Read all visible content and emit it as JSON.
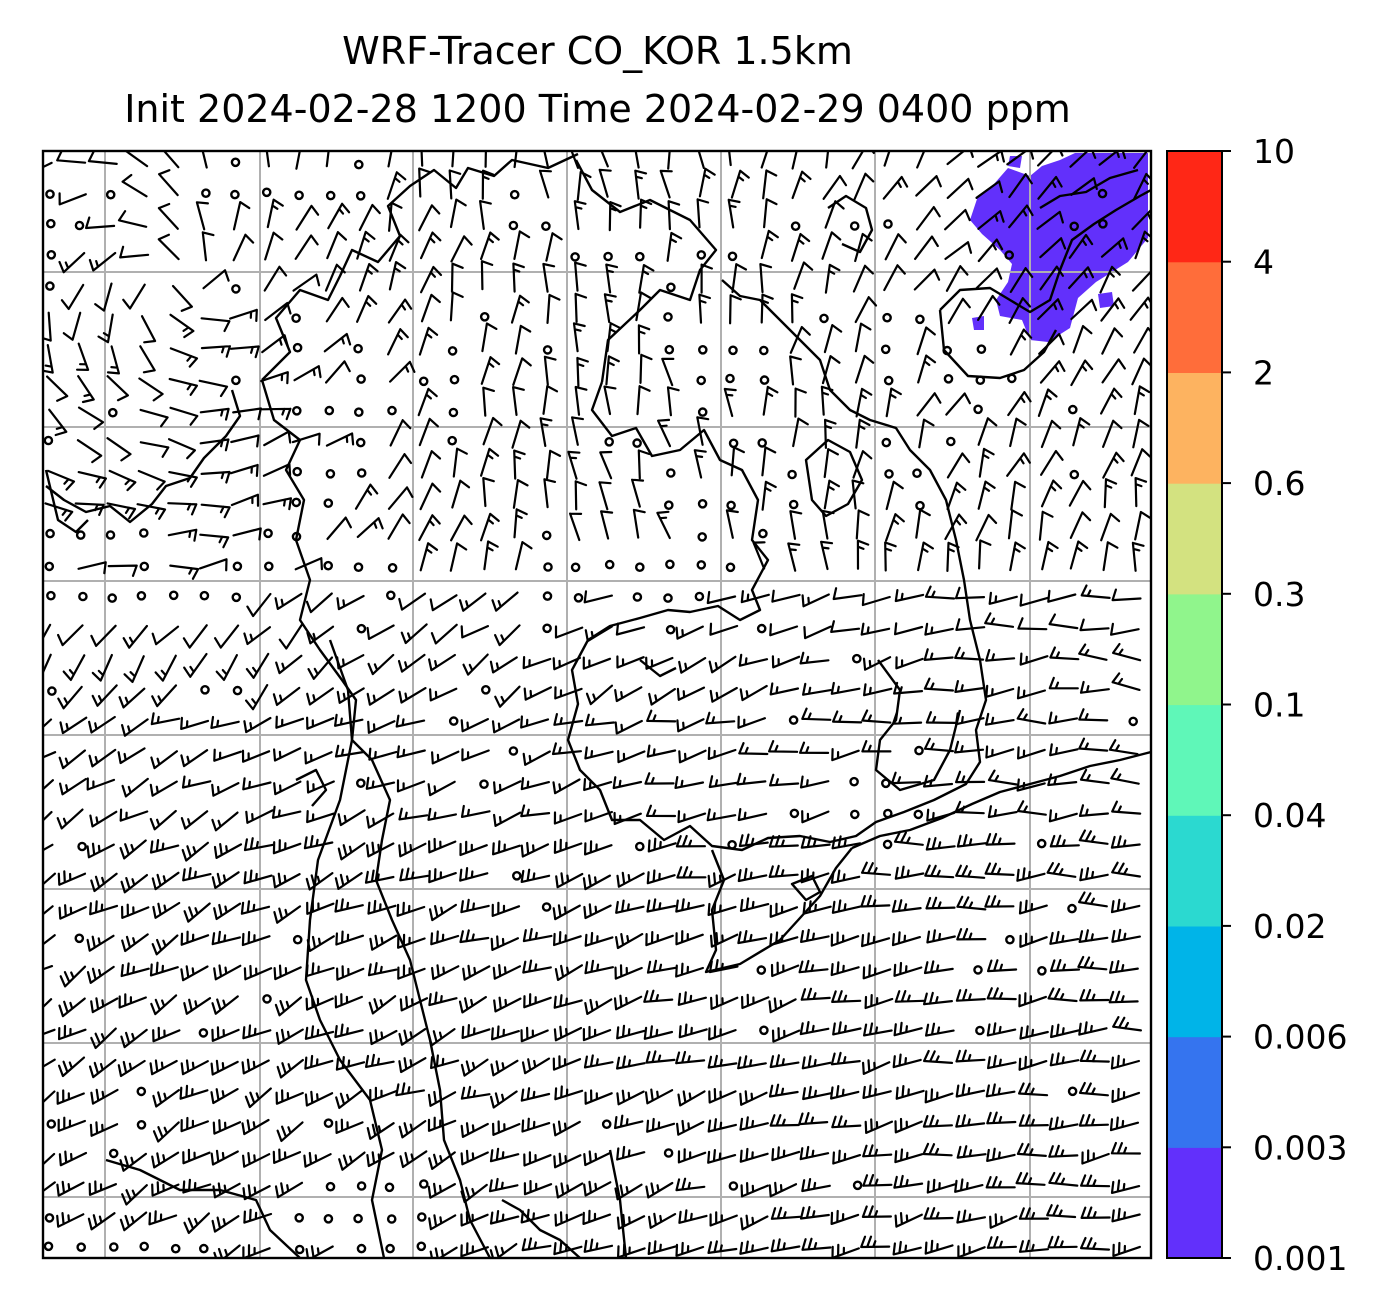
{
  "title": {
    "line1": "WRF-Tracer CO_KOR 1.5km",
    "line2": "Init 2024-02-28 1200 Time 2024-02-29 0400 ppm"
  },
  "colorbar": {
    "levels": [
      "0.001",
      "0.003",
      "0.006",
      "0.02",
      "0.04",
      "0.1",
      "0.3",
      "0.6",
      "2",
      "4",
      "10"
    ],
    "colors": [
      "#6230fb",
      "#3574ef",
      "#00b4e8",
      "#2bd9d0",
      "#5ff7b8",
      "#90f58c",
      "#d3e280",
      "#fdb360",
      "#ff6d3a",
      "#ff2716"
    ]
  },
  "map": {
    "tracer_fill_color": "#6230fb",
    "coastline_color": "#000000",
    "gridline_color": "#b0b0b0",
    "barb_color": "#000000"
  }
}
